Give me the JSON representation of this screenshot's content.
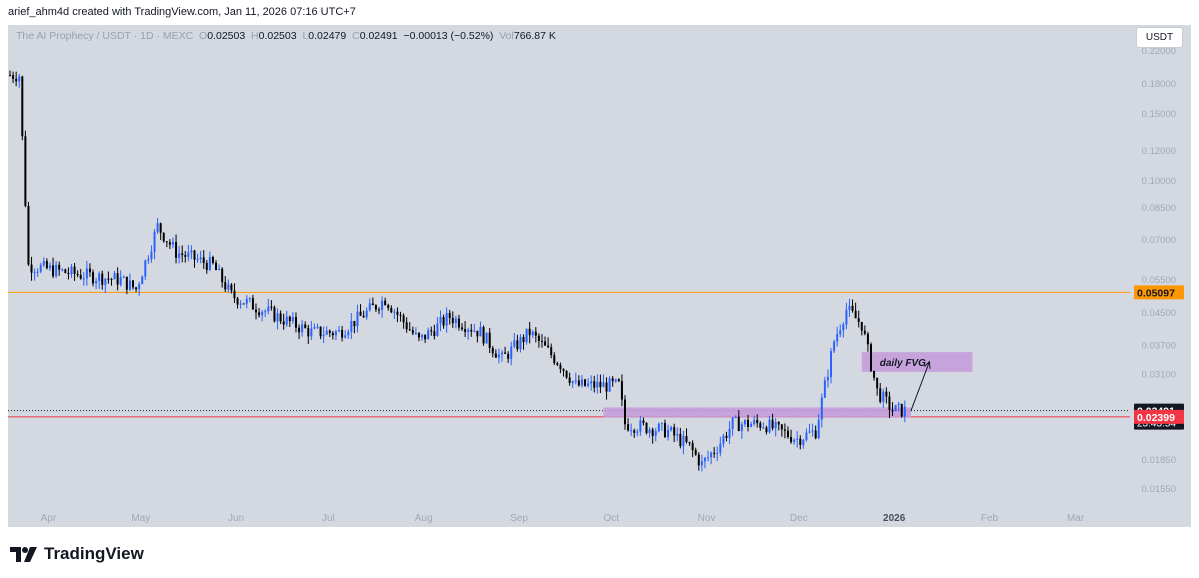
{
  "header": {
    "text": "arief_ahm4d created with TradingView.com, Jan 11, 2026 07:16 UTC+7"
  },
  "legend": {
    "symbol": "The AI Prophecy / USDT · 1D · MEXC",
    "o_label": "O",
    "o": "0.02503",
    "h_label": "H",
    "h": "0.02503",
    "l_label": "L",
    "l": "0.02479",
    "c_label": "C",
    "c": "0.02491",
    "change": "−0.00013 (−0.52%)",
    "vol_label": "Vol",
    "vol": "766.87 K"
  },
  "currency_button": "USDT",
  "brand": {
    "name": "TradingView"
  },
  "colors": {
    "background": "#d4d8e0",
    "up_candle": "#2962ff",
    "down_candle": "#000000",
    "resistance": "#ff9800",
    "support": "#f23645",
    "fvg_zone": "#c39ad9"
  },
  "chart_data": {
    "type": "candlestick",
    "scale": "log",
    "ylim": [
      0.0145,
      0.235
    ],
    "y_ticks": [
      "0.22000",
      "0.18000",
      "0.15000",
      "0.12000",
      "0.10000",
      "0.08500",
      "0.07000",
      "0.05500",
      "0.04500",
      "0.03700",
      "0.03100",
      "0.02500",
      "0.01850",
      "0.01550"
    ],
    "x_ticks": [
      "Apr",
      "May",
      "Jun",
      "Jul",
      "Aug",
      "Sep",
      "Oct",
      "Nov",
      "Dec",
      "2026",
      "Feb",
      "Mar"
    ],
    "price_tags": [
      {
        "price": 0.05097,
        "label": "0.05097",
        "kind": "resistance"
      },
      {
        "price": 0.02491,
        "label": "0.02491",
        "sub": "23:43:54",
        "kind": "last"
      },
      {
        "price": 0.02399,
        "label": "0.02399",
        "kind": "support"
      }
    ],
    "annotations": [
      {
        "label": "daily FVG",
        "kind": "zone",
        "from_date": "2025-12-27",
        "to_date": "2026-02-01",
        "low": 0.0315,
        "high": 0.0355
      },
      {
        "label": "",
        "kind": "zone",
        "from_date": "2025-10-04",
        "to_date": "2026-01-12",
        "low": 0.0239,
        "high": 0.0254
      }
    ],
    "anchors": [
      {
        "date": "2025-03-25",
        "price": 0.19
      },
      {
        "date": "2025-03-28",
        "price": 0.19
      },
      {
        "date": "2025-03-31",
        "price": 0.06
      },
      {
        "date": "2025-04-15",
        "price": 0.057
      },
      {
        "date": "2025-04-30",
        "price": 0.055
      },
      {
        "date": "2025-05-05",
        "price": 0.052
      },
      {
        "date": "2025-05-12",
        "price": 0.076
      },
      {
        "date": "2025-05-18",
        "price": 0.065
      },
      {
        "date": "2025-05-30",
        "price": 0.06
      },
      {
        "date": "2025-06-05",
        "price": 0.05
      },
      {
        "date": "2025-06-20",
        "price": 0.044
      },
      {
        "date": "2025-07-01",
        "price": 0.04
      },
      {
        "date": "2025-07-10",
        "price": 0.04
      },
      {
        "date": "2025-07-25",
        "price": 0.049
      },
      {
        "date": "2025-08-05",
        "price": 0.038
      },
      {
        "date": "2025-08-15",
        "price": 0.044
      },
      {
        "date": "2025-08-25",
        "price": 0.04
      },
      {
        "date": "2025-09-01",
        "price": 0.034
      },
      {
        "date": "2025-09-10",
        "price": 0.04
      },
      {
        "date": "2025-09-20",
        "price": 0.033
      },
      {
        "date": "2025-09-25",
        "price": 0.029
      },
      {
        "date": "2025-10-09",
        "price": 0.029
      },
      {
        "date": "2025-10-11",
        "price": 0.023
      },
      {
        "date": "2025-10-25",
        "price": 0.022
      },
      {
        "date": "2025-11-01",
        "price": 0.02
      },
      {
        "date": "2025-11-05",
        "price": 0.018
      },
      {
        "date": "2025-11-10",
        "price": 0.02
      },
      {
        "date": "2025-11-15",
        "price": 0.023
      },
      {
        "date": "2025-11-25",
        "price": 0.023
      },
      {
        "date": "2025-12-06",
        "price": 0.021
      },
      {
        "date": "2025-12-12",
        "price": 0.022
      },
      {
        "date": "2025-12-18",
        "price": 0.038
      },
      {
        "date": "2025-12-22",
        "price": 0.046
      },
      {
        "date": "2025-12-27",
        "price": 0.042
      },
      {
        "date": "2026-01-01",
        "price": 0.028
      },
      {
        "date": "2026-01-06",
        "price": 0.025
      },
      {
        "date": "2026-01-10",
        "price": 0.0249
      }
    ]
  }
}
